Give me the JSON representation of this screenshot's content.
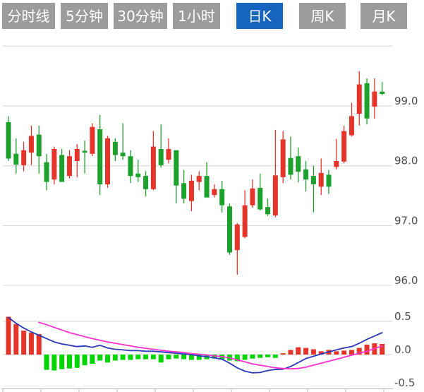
{
  "tabs": {
    "items": [
      {
        "label": "分时线",
        "active": false
      },
      {
        "label": "5分钟",
        "active": false
      },
      {
        "label": "30分钟",
        "active": false
      },
      {
        "label": "1小时",
        "active": false
      },
      {
        "label": "日K",
        "active": true
      },
      {
        "label": "周K",
        "active": false
      },
      {
        "label": "月K",
        "active": false
      }
    ],
    "active_color": "#1565c0",
    "inactive_color": "#9c9c9c"
  },
  "chart_data": {
    "type": "candlestick+macd",
    "title": "",
    "legend": "none",
    "grid": "on",
    "colors": {
      "up": "#e5352b",
      "down": "#1ca12c",
      "macd_positive": "#e5352b",
      "macd_negative": "#00d500",
      "dif_line": "#2b39b9",
      "dea_line": "#ff2fd0",
      "grid": "#d6d6d6",
      "axis": "#b9b9b9",
      "axis_text": "#4d4d4d"
    },
    "price_panel": {
      "y_axis": {
        "values": [
          99.0,
          98.0,
          97.0,
          96.0
        ],
        "labels": [
          "99.0",
          "98.0",
          "97.0",
          "96.0"
        ],
        "top_line_value": 100.0
      },
      "candles_ohlc": [
        [
          98.73,
          98.83,
          98.08,
          98.12
        ],
        [
          98.2,
          98.46,
          97.87,
          98.02
        ],
        [
          98.01,
          98.4,
          97.91,
          98.26
        ],
        [
          98.22,
          98.67,
          98.01,
          98.5
        ],
        [
          98.52,
          98.67,
          97.87,
          98.16
        ],
        [
          98.06,
          98.2,
          97.59,
          97.73
        ],
        [
          97.77,
          98.32,
          97.69,
          98.28
        ],
        [
          98.18,
          98.28,
          97.73,
          97.73
        ],
        [
          97.83,
          98.26,
          97.79,
          98.16
        ],
        [
          98.08,
          98.36,
          97.81,
          98.28
        ],
        [
          98.25,
          98.42,
          97.87,
          98.22
        ],
        [
          98.2,
          98.71,
          98.16,
          98.65
        ],
        [
          98.61,
          98.85,
          97.51,
          97.69
        ],
        [
          97.69,
          98.5,
          97.63,
          98.46
        ],
        [
          98.4,
          98.46,
          98.08,
          98.18
        ],
        [
          98.22,
          98.71,
          98.1,
          98.16
        ],
        [
          98.16,
          98.26,
          97.71,
          97.83
        ],
        [
          97.87,
          98.1,
          97.73,
          97.81
        ],
        [
          97.83,
          97.91,
          97.49,
          97.61
        ],
        [
          97.61,
          98.58,
          97.59,
          98.32
        ],
        [
          98.28,
          98.69,
          97.97,
          98.01
        ],
        [
          98.1,
          98.46,
          98.04,
          98.28
        ],
        [
          98.26,
          98.26,
          97.37,
          97.67
        ],
        [
          97.71,
          97.93,
          97.37,
          97.45
        ],
        [
          97.41,
          97.85,
          97.24,
          97.75
        ],
        [
          97.73,
          97.91,
          97.59,
          97.83
        ],
        [
          97.83,
          98.06,
          97.47,
          97.47
        ],
        [
          97.51,
          97.69,
          97.47,
          97.61
        ],
        [
          97.61,
          97.75,
          97.22,
          97.34
        ],
        [
          97.32,
          97.37,
          96.51,
          96.55
        ],
        [
          96.59,
          97.04,
          96.18,
          97.02
        ],
        [
          96.81,
          97.59,
          96.79,
          97.34
        ],
        [
          97.34,
          97.77,
          97.3,
          97.62
        ],
        [
          97.63,
          97.87,
          97.25,
          97.27
        ],
        [
          97.31,
          97.45,
          97.16,
          97.19
        ],
        [
          97.17,
          98.6,
          97.14,
          97.84
        ],
        [
          97.81,
          98.58,
          97.71,
          98.44
        ],
        [
          98.13,
          98.49,
          97.77,
          97.85
        ],
        [
          98.16,
          98.3,
          97.72,
          97.9
        ],
        [
          97.94,
          98.08,
          97.57,
          97.77
        ],
        [
          97.83,
          98.0,
          97.22,
          97.69
        ],
        [
          97.65,
          98.12,
          97.51,
          97.88
        ],
        [
          97.85,
          97.93,
          97.53,
          97.65
        ],
        [
          97.98,
          98.45,
          97.94,
          98.08
        ],
        [
          98.07,
          98.67,
          98.04,
          98.58
        ],
        [
          98.51,
          99.05,
          98.49,
          98.83
        ],
        [
          98.87,
          99.58,
          98.67,
          99.36
        ],
        [
          99.38,
          99.46,
          98.69,
          98.79
        ],
        [
          98.99,
          99.46,
          98.79,
          99.24
        ],
        [
          99.24,
          99.4,
          99.18,
          99.2
        ]
      ]
    },
    "macd_panel": {
      "y_axis": {
        "values": [
          0.5,
          0.0,
          -0.5
        ],
        "labels": [
          "0.5",
          "0.0",
          "-0.5"
        ]
      },
      "histogram": [
        0.57,
        0.46,
        0.36,
        0.33,
        0.31,
        -0.23,
        -0.24,
        -0.22,
        -0.21,
        -0.2,
        -0.16,
        -0.14,
        -0.09,
        -0.12,
        -0.09,
        -0.08,
        -0.08,
        -0.07,
        -0.07,
        -0.07,
        -0.12,
        -0.07,
        -0.06,
        -0.07,
        -0.08,
        -0.08,
        -0.07,
        -0.06,
        -0.07,
        -0.09,
        -0.1,
        -0.08,
        -0.06,
        -0.05,
        -0.04,
        -0.05,
        0.02,
        0.07,
        0.11,
        0.1,
        0.08,
        0.05,
        0.07,
        0.05,
        0.06,
        0.07,
        0.1,
        0.15,
        0.17,
        0.16
      ],
      "dif_line": {
        "start_index": 0,
        "values": [
          0.56,
          0.47,
          0.4,
          0.34,
          0.29,
          0.24,
          0.19,
          0.16,
          0.14,
          0.12,
          0.13,
          0.11,
          0.14,
          0.1,
          0.08,
          0.07,
          0.06,
          0.06,
          0.05,
          0.05,
          0.04,
          0.03,
          0.02,
          0.01,
          0.0,
          -0.02,
          -0.03,
          -0.05,
          -0.07,
          -0.13,
          -0.2,
          -0.25,
          -0.275,
          -0.27,
          -0.24,
          -0.225,
          -0.22,
          -0.18,
          -0.12,
          -0.06,
          -0.025,
          0.01,
          0.04,
          0.07,
          0.1,
          0.12,
          0.17,
          0.23,
          0.28,
          0.33
        ]
      },
      "dea_line": {
        "start_index": 4,
        "values": [
          0.485,
          0.45,
          0.41,
          0.37,
          0.33,
          0.3,
          0.27,
          0.24,
          0.215,
          0.19,
          0.17,
          0.15,
          0.13,
          0.11,
          0.095,
          0.08,
          0.065,
          0.05,
          0.04,
          0.03,
          0.015,
          0.005,
          -0.005,
          -0.02,
          -0.03,
          -0.05,
          -0.08,
          -0.11,
          -0.14,
          -0.16,
          -0.18,
          -0.2,
          -0.21,
          -0.215,
          -0.21,
          -0.19,
          -0.16,
          -0.13,
          -0.1,
          -0.07,
          -0.04,
          -0.01,
          0.02,
          0.05,
          0.09,
          0.13
        ]
      }
    },
    "x_axis": {
      "tick_count": 11
    }
  }
}
